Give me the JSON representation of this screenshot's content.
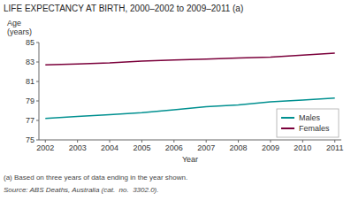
{
  "chart_data": {
    "type": "line",
    "title": "LIFE EXPECTANCY AT BIRTH, 2000–2002 to 2009–2011 (a)",
    "ylabel": [
      "Age",
      "(years)"
    ],
    "xlabel": "Year",
    "footnotes": [
      "(a) Based on three years of data ending in the year shown.",
      "Source: ABS Deaths, Australia (cat.  no.  3302.0)."
    ],
    "x": [
      2002,
      2003,
      2004,
      2005,
      2006,
      2007,
      2008,
      2009,
      2010,
      2011
    ],
    "series": [
      {
        "name": "Males",
        "color": "#009090",
        "values": [
          77.2,
          77.4,
          77.6,
          77.8,
          78.1,
          78.4,
          78.6,
          78.9,
          79.1,
          79.3
        ]
      },
      {
        "name": "Females",
        "color": "#7B003B",
        "values": [
          82.7,
          82.8,
          82.9,
          83.1,
          83.2,
          83.3,
          83.4,
          83.5,
          83.7,
          83.9
        ]
      }
    ],
    "xlim": [
      2001.8,
      2011.2
    ],
    "xticks": [
      2002,
      2003,
      2004,
      2005,
      2006,
      2007,
      2008,
      2009,
      2010,
      2011
    ],
    "ylim": [
      75,
      85
    ],
    "yticks": [
      75,
      77,
      79,
      81,
      83,
      85
    ],
    "grid": false,
    "legend": "lower right"
  }
}
